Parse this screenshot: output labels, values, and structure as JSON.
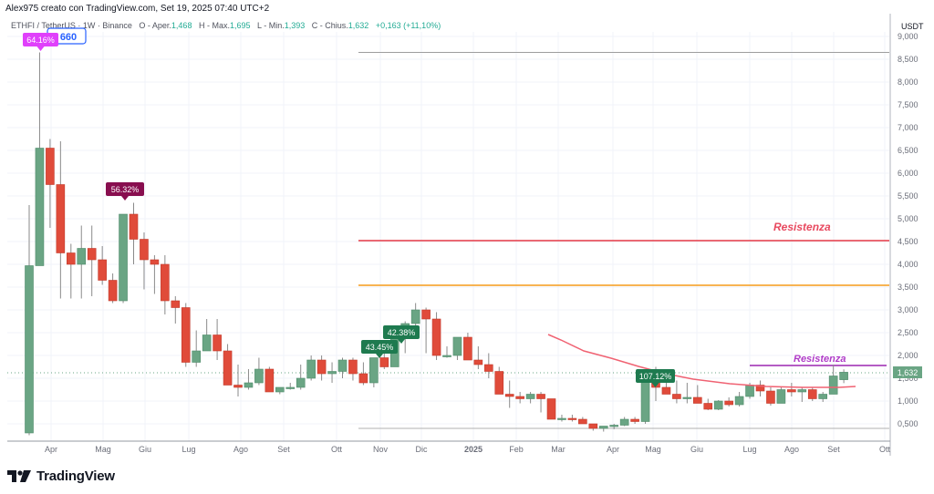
{
  "header": {
    "credit": "Alex975 creato con TradingView.com, Set 19, 2025 07:40 UTC+2",
    "symbol": "ETHFI / TetherUS · 1W · Binance",
    "open_label": "O - Aper.",
    "open": "1,468",
    "high_label": "H - Max.",
    "high": "1,695",
    "low_label": "L - Min.",
    "low": "1,393",
    "close_label": "C - Chius.",
    "close": "1,632",
    "change": "+0,163 (+11,10%)"
  },
  "price_axis": {
    "currency": "USDT",
    "current_price_label": "1,632",
    "ticks": [
      "9,000",
      "8,500",
      "8,000",
      "7,500",
      "7,000",
      "6,500",
      "6,000",
      "5,500",
      "5,000",
      "4,500",
      "4,000",
      "3,500",
      "3,000",
      "2,500",
      "2,000",
      "1,500",
      "1,000",
      "0,500"
    ]
  },
  "time_axis": {
    "ticks": [
      "Apr",
      "Mag",
      "Giu",
      "Lug",
      "Ago",
      "Set",
      "Ott",
      "Nov",
      "Dic",
      "2025",
      "Feb",
      "Mar",
      "Apr",
      "Mag",
      "Giu",
      "Lug",
      "Ago",
      "Set",
      "Ott"
    ]
  },
  "annotations": {
    "ath_box": "660",
    "labels": [
      {
        "text": "64.16%",
        "color": "#e040fb"
      },
      {
        "text": "56.32%",
        "color": "#880e4f"
      },
      {
        "text": "43.45%",
        "color": "#1e7a4f"
      },
      {
        "text": "42.38%",
        "color": "#1e7a4f"
      },
      {
        "text": "107.12%",
        "color": "#1e7a4f"
      }
    ],
    "resistance_upper": "Resistenza",
    "resistance_lower": "Resistenza"
  },
  "colors": {
    "up": "#6aa584",
    "down": "#e04b3a",
    "ma": "#f06272",
    "res_red": "#e53945",
    "res_orange": "#f59c1a",
    "res_purple": "#9c27b0",
    "res_label_red": "#e8495f",
    "res_label_purple": "#b03cc8"
  },
  "brand": {
    "name": "TradingView"
  },
  "chart_data": {
    "type": "candlestick",
    "title": "ETHFI / TetherUS · 1W · Binance",
    "ylabel": "USDT",
    "ylim": [
      0.2,
      9.0
    ],
    "horizontal_lines": [
      {
        "name": "Resistenza (upper)",
        "value": 4.55,
        "color": "#e53945"
      },
      {
        "name": "Resistance (orange)",
        "value": 3.57,
        "color": "#f59c1a"
      },
      {
        "name": "Resistenza (lower)",
        "value": 1.77,
        "color": "#9c27b0"
      },
      {
        "name": "grey top",
        "value": 8.65,
        "color": "#9e9e9e"
      },
      {
        "name": "grey bottom",
        "value": 0.4,
        "color": "#9e9e9e"
      }
    ],
    "last": {
      "open": 1.468,
      "high": 1.695,
      "low": 1.393,
      "close": 1.632,
      "change": 0.163,
      "change_pct": 11.1
    },
    "candles": [
      [
        0.3,
        5.3,
        0.25,
        3.97
      ],
      [
        3.97,
        8.65,
        3.97,
        6.55
      ],
      [
        6.55,
        6.75,
        4.8,
        5.75
      ],
      [
        5.75,
        6.7,
        3.25,
        4.25
      ],
      [
        4.25,
        4.45,
        3.25,
        4.0
      ],
      [
        4.0,
        4.85,
        3.25,
        4.35
      ],
      [
        4.35,
        4.85,
        3.3,
        4.1
      ],
      [
        4.1,
        4.4,
        3.55,
        3.65
      ],
      [
        3.65,
        3.8,
        3.15,
        3.2
      ],
      [
        3.2,
        5.1,
        3.15,
        5.1
      ],
      [
        5.1,
        5.35,
        4.0,
        4.55
      ],
      [
        4.55,
        4.7,
        3.45,
        4.1
      ],
      [
        4.1,
        4.2,
        3.35,
        4.0
      ],
      [
        4.0,
        4.2,
        2.9,
        3.2
      ],
      [
        3.2,
        3.3,
        2.7,
        3.05
      ],
      [
        3.05,
        3.15,
        1.75,
        1.85
      ],
      [
        1.85,
        2.55,
        1.75,
        2.1
      ],
      [
        2.1,
        2.8,
        2.1,
        2.45
      ],
      [
        2.45,
        2.8,
        1.9,
        2.1
      ],
      [
        2.1,
        2.25,
        1.35,
        1.35
      ],
      [
        1.35,
        1.8,
        1.1,
        1.3
      ],
      [
        1.3,
        1.7,
        1.25,
        1.4
      ],
      [
        1.4,
        1.95,
        1.35,
        1.7
      ],
      [
        1.7,
        1.75,
        1.2,
        1.2
      ],
      [
        1.2,
        1.3,
        1.15,
        1.3
      ],
      [
        1.3,
        1.4,
        1.25,
        1.3
      ],
      [
        1.3,
        1.8,
        1.25,
        1.5
      ],
      [
        1.5,
        2.0,
        1.45,
        1.9
      ],
      [
        1.9,
        2.0,
        1.45,
        1.6
      ],
      [
        1.6,
        1.85,
        1.4,
        1.65
      ],
      [
        1.65,
        1.95,
        1.5,
        1.9
      ],
      [
        1.9,
        1.95,
        1.45,
        1.6
      ],
      [
        1.6,
        1.85,
        1.35,
        1.4
      ],
      [
        1.4,
        1.75,
        1.3,
        1.95
      ],
      [
        1.95,
        2.1,
        1.7,
        1.75
      ],
      [
        1.75,
        2.45,
        1.75,
        2.45
      ],
      [
        2.45,
        2.75,
        2.05,
        2.7
      ],
      [
        2.7,
        3.15,
        2.55,
        3.0
      ],
      [
        3.0,
        3.05,
        2.05,
        2.8
      ],
      [
        2.8,
        2.95,
        1.9,
        2.0
      ],
      [
        2.0,
        2.2,
        1.95,
        2.0
      ],
      [
        2.0,
        2.4,
        1.9,
        2.4
      ],
      [
        2.4,
        2.5,
        1.9,
        1.9
      ],
      [
        1.9,
        2.2,
        1.7,
        1.8
      ],
      [
        1.8,
        2.05,
        1.5,
        1.65
      ],
      [
        1.65,
        1.75,
        1.15,
        1.15
      ],
      [
        1.15,
        1.45,
        0.85,
        1.1
      ],
      [
        1.1,
        1.2,
        0.95,
        1.05
      ],
      [
        1.05,
        1.2,
        0.95,
        1.15
      ],
      [
        1.15,
        1.2,
        0.75,
        1.05
      ],
      [
        1.05,
        1.05,
        0.6,
        0.6
      ],
      [
        0.6,
        0.7,
        0.55,
        0.62
      ],
      [
        0.62,
        0.7,
        0.55,
        0.6
      ],
      [
        0.6,
        0.65,
        0.5,
        0.5
      ],
      [
        0.5,
        0.5,
        0.35,
        0.4
      ],
      [
        0.4,
        0.45,
        0.33,
        0.45
      ],
      [
        0.45,
        0.5,
        0.38,
        0.47
      ],
      [
        0.47,
        0.65,
        0.45,
        0.6
      ],
      [
        0.6,
        0.65,
        0.5,
        0.55
      ],
      [
        0.55,
        1.65,
        0.5,
        1.55
      ],
      [
        1.55,
        1.75,
        1.0,
        1.3
      ],
      [
        1.3,
        1.4,
        1.15,
        1.15
      ],
      [
        1.15,
        1.45,
        0.95,
        1.05
      ],
      [
        1.05,
        1.4,
        0.95,
        1.08
      ],
      [
        1.08,
        1.35,
        0.98,
        0.95
      ],
      [
        0.95,
        1.05,
        0.8,
        0.82
      ],
      [
        0.82,
        1.02,
        0.8,
        1.0
      ],
      [
        1.0,
        1.08,
        0.88,
        0.92
      ],
      [
        0.92,
        1.2,
        0.88,
        1.1
      ],
      [
        1.1,
        1.4,
        1.05,
        1.35
      ],
      [
        1.35,
        1.45,
        1.1,
        1.22
      ],
      [
        1.22,
        1.3,
        0.9,
        0.95
      ],
      [
        0.95,
        1.3,
        0.95,
        1.25
      ],
      [
        1.25,
        1.4,
        1.1,
        1.2
      ],
      [
        1.2,
        1.3,
        0.98,
        1.25
      ],
      [
        1.25,
        1.3,
        1.0,
        1.05
      ],
      [
        1.05,
        1.2,
        0.98,
        1.15
      ],
      [
        1.15,
        1.8,
        1.15,
        1.55
      ],
      [
        1.468,
        1.695,
        1.393,
        1.632
      ]
    ],
    "ma_series": "Descending moving average from ~2.45 (Mar 2025) to ~1.30 (Sep 2025)",
    "change_labels": [
      "64.16%",
      "56.32%",
      "43.45%",
      "42.38%",
      "107.12%"
    ]
  }
}
